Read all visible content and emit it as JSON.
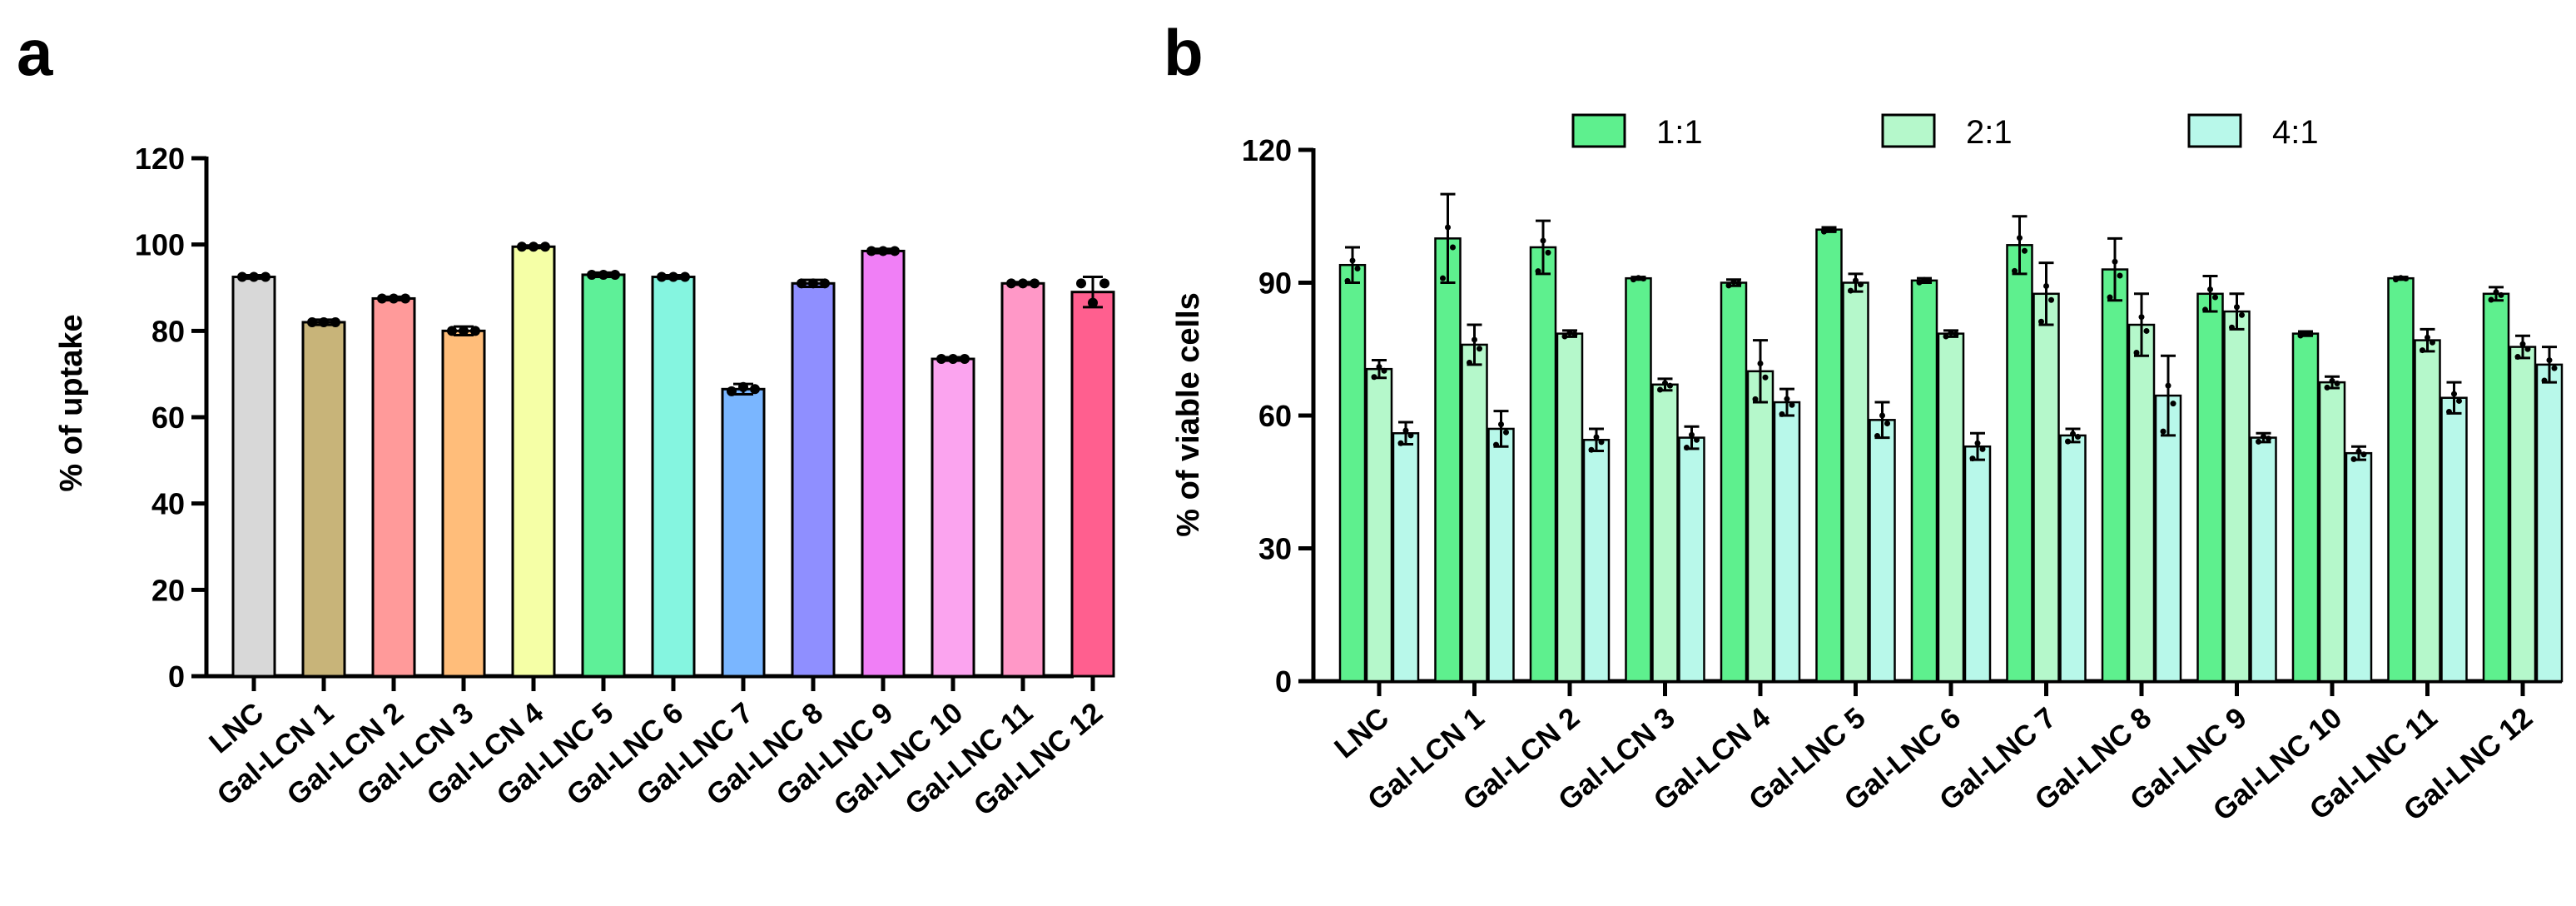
{
  "chart_data": [
    {
      "panel": "a",
      "type": "bar",
      "title": "",
      "xlabel": "",
      "ylabel": "% of uptake",
      "ylim": [
        0,
        120
      ],
      "yticks": [
        0,
        20,
        40,
        60,
        80,
        100,
        120
      ],
      "grid": false,
      "categories": [
        "LNC",
        "Gal-LCN 1",
        "Gal-LCN 2",
        "Gal-LCN 3",
        "Gal-LCN 4",
        "Gal-LNC 5",
        "Gal-LNC 6",
        "Gal-LNC 7",
        "Gal-LNC 8",
        "Gal-LNC 9",
        "Gal-LNC 10",
        "Gal-LNC 11",
        "Gal-LNC 12"
      ],
      "values": [
        92.5,
        82,
        87.5,
        80,
        99.5,
        93,
        92.5,
        66.5,
        91,
        98.5,
        73.5,
        91,
        89
      ],
      "errors": [
        0.4,
        0.6,
        0.4,
        1.0,
        0.3,
        0.5,
        0.4,
        1.2,
        0.8,
        0.5,
        0.4,
        0.3,
        3.5
      ],
      "points": [
        [
          92.5,
          92.5,
          92.5
        ],
        [
          82,
          82,
          82
        ],
        [
          87.5,
          87.5,
          87.5
        ],
        [
          80,
          80,
          80
        ],
        [
          99.5,
          99.5,
          99.5
        ],
        [
          93,
          93,
          93
        ],
        [
          92.5,
          92.5,
          92.5
        ],
        [
          66,
          67,
          66.5
        ],
        [
          91,
          91,
          91
        ],
        [
          98.5,
          98.5,
          98.5
        ],
        [
          73.5,
          73.5,
          73.5
        ],
        [
          91,
          91,
          91
        ],
        [
          91,
          86.5,
          91
        ]
      ],
      "colors": [
        "#d8d8d8",
        "#c8b479",
        "#ff9a9a",
        "#ffbd7a",
        "#f5ffa6",
        "#5ef098",
        "#85f5e0",
        "#7ab6ff",
        "#8f8fff",
        "#f07ff6",
        "#fba4ef",
        "#ff98c7",
        "#ff5f8f"
      ]
    },
    {
      "panel": "b",
      "type": "bar",
      "title": "",
      "xlabel": "",
      "ylabel": "% of viable cells",
      "ylim": [
        0,
        120
      ],
      "yticks": [
        0,
        30,
        60,
        90,
        120
      ],
      "grid": false,
      "legend_position": "top",
      "categories": [
        "LNC",
        "Gal-LCN 1",
        "Gal-LCN 2",
        "Gal-LCN 3",
        "Gal-LCN 4",
        "Gal-LNC 5",
        "Gal-LNC 6",
        "Gal-LNC 7",
        "Gal-LNC 8",
        "Gal-LNC 9",
        "Gal-LNC 10",
        "Gal-LNC 11",
        "Gal-LNC 12"
      ],
      "series": [
        {
          "name": "1:1",
          "color": "#5ef08e",
          "values": [
            94,
            100,
            98,
            91,
            90,
            102,
            90.5,
            98.5,
            93,
            87.5,
            78.5,
            91,
            87.5
          ],
          "errors": [
            4,
            10,
            6,
            0.3,
            0.7,
            0.5,
            0.5,
            6.5,
            7,
            4,
            0.5,
            0.3,
            1.5
          ]
        },
        {
          "name": "2:1",
          "color": "#b5f8cb",
          "values": [
            70.5,
            76,
            78.5,
            67,
            70,
            90,
            78.5,
            87.5,
            80.5,
            83.5,
            67.5,
            77,
            75.5
          ],
          "errors": [
            2,
            4.5,
            0.7,
            1.3,
            7,
            2,
            0.7,
            7,
            7,
            4,
            1.3,
            2.5,
            2.5
          ]
        },
        {
          "name": "4:1",
          "color": "#b8f8ea",
          "values": [
            56,
            57,
            54.5,
            55,
            63,
            59,
            53,
            55.5,
            64.5,
            55,
            51.5,
            64,
            71.5
          ],
          "errors": [
            2.5,
            4,
            2.5,
            2.5,
            3,
            4,
            3,
            1.5,
            9,
            1,
            1.5,
            3.5,
            4
          ]
        }
      ]
    }
  ]
}
